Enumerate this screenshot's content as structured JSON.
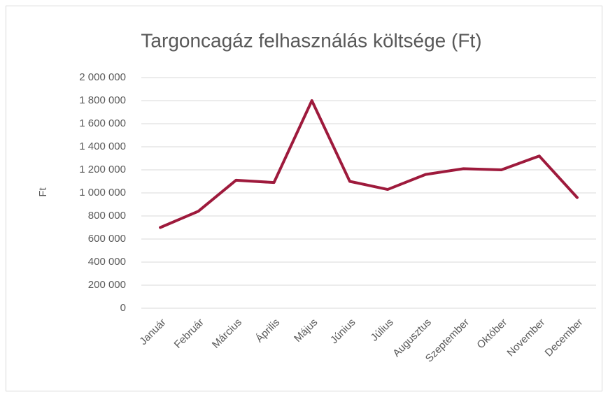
{
  "chart_data": {
    "type": "line",
    "title": "Targoncagáz felhasználás költsége (Ft)",
    "y_label": "Ft",
    "categories": [
      "Január",
      "Február",
      "Március",
      "Április",
      "Május",
      "Június",
      "Július",
      "Augusztus",
      "Szeptember",
      "Október",
      "November",
      "December"
    ],
    "series": [
      {
        "name": "Ft",
        "color": "#9e1a3c",
        "values": [
          700000,
          840000,
          1110000,
          1090000,
          1800000,
          1100000,
          1030000,
          1160000,
          1210000,
          1200000,
          1320000,
          960000
        ]
      }
    ],
    "ylim": [
      0,
      2000000
    ],
    "yticks": [
      0,
      {
        "value": 200000,
        "label": "200 000"
      },
      {
        "value": 400000,
        "label": "400 000"
      },
      {
        "value": 600000,
        "label": "600 000"
      },
      {
        "value": 800000,
        "label": "800 000"
      },
      {
        "value": 1000000,
        "label": "1 000 000"
      },
      {
        "value": 1200000,
        "label": "1 200 000"
      },
      {
        "value": 1400000,
        "label": "1 400 000"
      },
      {
        "value": 1600000,
        "label": "1 600 000"
      },
      {
        "value": 1800000,
        "label": "1 800 000"
      },
      {
        "value": 2000000,
        "label": "2 000 000"
      }
    ],
    "grid": true,
    "legend": false
  }
}
